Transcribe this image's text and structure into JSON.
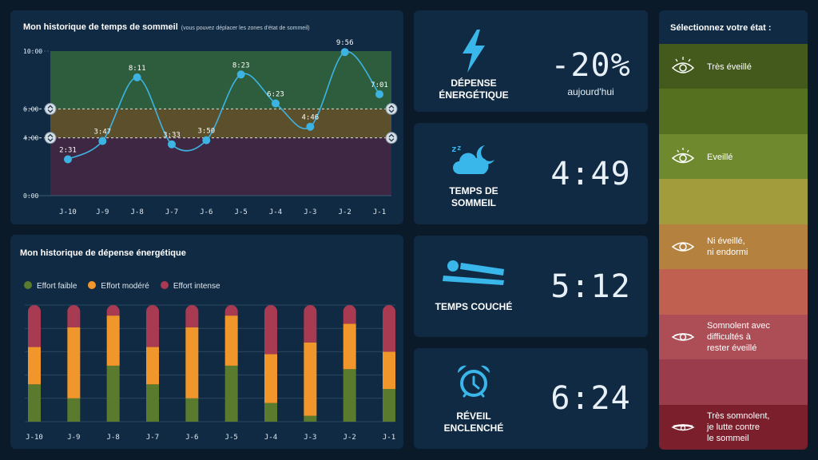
{
  "sleep_panel": {
    "title": "Mon historique de temps de sommeil",
    "subtitle": "(vous pouvez déplacer les zones d'état de sommeil)",
    "y_ticks": [
      "10:00",
      "6:00",
      "4:00",
      "0:00"
    ],
    "days": [
      "J-10",
      "J-9",
      "J-8",
      "J-7",
      "J-6",
      "J-5",
      "J-4",
      "J-3",
      "J-2",
      "J-1"
    ],
    "values": [
      "2:31",
      "3:47",
      "8:11",
      "3:33",
      "3:50",
      "8:23",
      "6:23",
      "4:46",
      "9:56",
      "7:01"
    ],
    "zone_colors": {
      "good": "#2d5d3c",
      "mid": "#5c4f2c",
      "bad": "#3e2742"
    },
    "line_color": "#3db3e3"
  },
  "chart_data": [
    {
      "type": "line",
      "title": "Mon historique de temps de sommeil",
      "categories": [
        "J-10",
        "J-9",
        "J-8",
        "J-7",
        "J-6",
        "J-5",
        "J-4",
        "J-3",
        "J-2",
        "J-1"
      ],
      "values_hours": [
        2.517,
        3.783,
        8.183,
        3.55,
        3.833,
        8.383,
        6.383,
        4.767,
        9.933,
        7.017
      ],
      "data_labels": [
        "2:31",
        "3:47",
        "8:11",
        "3:33",
        "3:50",
        "8:23",
        "6:23",
        "4:46",
        "9:56",
        "7:01"
      ],
      "ylim": [
        0,
        10
      ],
      "y_tick_labels": [
        "10:00",
        "6:00",
        "4:00",
        "0:00"
      ],
      "zones": [
        {
          "from": 6,
          "to": 10,
          "color": "#2d5d3c"
        },
        {
          "from": 4,
          "to": 6,
          "color": "#5c4f2c"
        },
        {
          "from": 0,
          "to": 4,
          "color": "#3e2742"
        }
      ]
    },
    {
      "type": "bar",
      "stacked": true,
      "title": "Mon historique de dépense énergétique",
      "categories": [
        "J-10",
        "J-9",
        "J-8",
        "J-7",
        "J-6",
        "J-5",
        "J-4",
        "J-3",
        "J-2",
        "J-1"
      ],
      "ylim": [
        0,
        100
      ],
      "legend": "top-left",
      "series": [
        {
          "name": "Effort faible",
          "color": "#5a7a2e",
          "values": [
            32,
            20,
            48,
            32,
            20,
            48,
            16,
            5,
            45,
            28
          ]
        },
        {
          "name": "Effort modéré",
          "color": "#f0962a",
          "values": [
            32,
            61,
            43,
            32,
            61,
            43,
            42,
            63,
            39,
            32
          ]
        },
        {
          "name": "Effort intense",
          "color": "#a83a52",
          "values": [
            36,
            19,
            9,
            36,
            19,
            9,
            42,
            32,
            16,
            40
          ]
        }
      ]
    }
  ],
  "energy_panel": {
    "title": "Mon historique de dépense énergétique"
  },
  "tiles": {
    "energy": {
      "label_1": "DÉPENSE",
      "label_2": "ÉNERGÉTIQUE",
      "value": "-20%",
      "sub": "aujourd'hui",
      "icon": "lightning-icon"
    },
    "sleep": {
      "label_1": "TEMPS DE",
      "label_2": "SOMMEIL",
      "value": "4:49",
      "icon": "cloud-moon-icon"
    },
    "lying": {
      "label_1": "TEMPS COUCHÉ",
      "value": "5:12",
      "icon": "lying-person-icon"
    },
    "alarm": {
      "label_1": "RÉVEIL",
      "label_2": "ENCLENCHÉ",
      "value": "6:24",
      "icon": "alarm-clock-icon"
    }
  },
  "states": {
    "title": "Sélectionnez votre état :",
    "bands": [
      "#435a1c",
      "#55701f",
      "#6f8a2e",
      "#a39c3d",
      "#b5813f",
      "#c06050",
      "#ad4e56",
      "#9a3c4b",
      "#7b1f2c"
    ],
    "items": [
      {
        "l1": "Très éveillé",
        "l2": "",
        "l3": ""
      },
      {
        "l1": "Eveillé",
        "l2": "",
        "l3": ""
      },
      {
        "l1": "Ni éveillé,",
        "l2": "ni endormi",
        "l3": ""
      },
      {
        "l1": "Somnolent avec",
        "l2": "difficultés à",
        "l3": "rester éveillé"
      },
      {
        "l1": "Très somnolent,",
        "l2": "je lutte contre",
        "l3": "le sommeil"
      }
    ]
  }
}
